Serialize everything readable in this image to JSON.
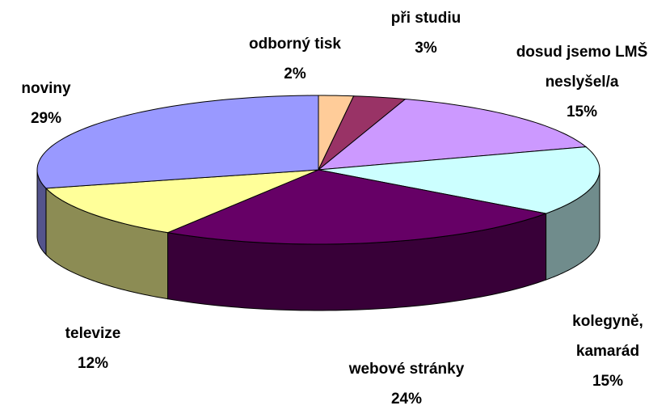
{
  "chart_data": {
    "type": "pie",
    "categories": [
      "odborný tisk",
      "při studiu",
      "dosud jsemo LMŠ neslyšel/a",
      "kolegyně, kamarád",
      "webové stránky",
      "televize",
      "noviny"
    ],
    "values": [
      2,
      3,
      15,
      15,
      24,
      12,
      29
    ],
    "value_labels": [
      "2%",
      "3%",
      "15%",
      "15%",
      "24%",
      "12%",
      "29%"
    ],
    "colors": [
      "#ffcc99",
      "#993366",
      "#cc99ff",
      "#ccffff",
      "#660066",
      "#ffff99",
      "#9999ff"
    ]
  }
}
